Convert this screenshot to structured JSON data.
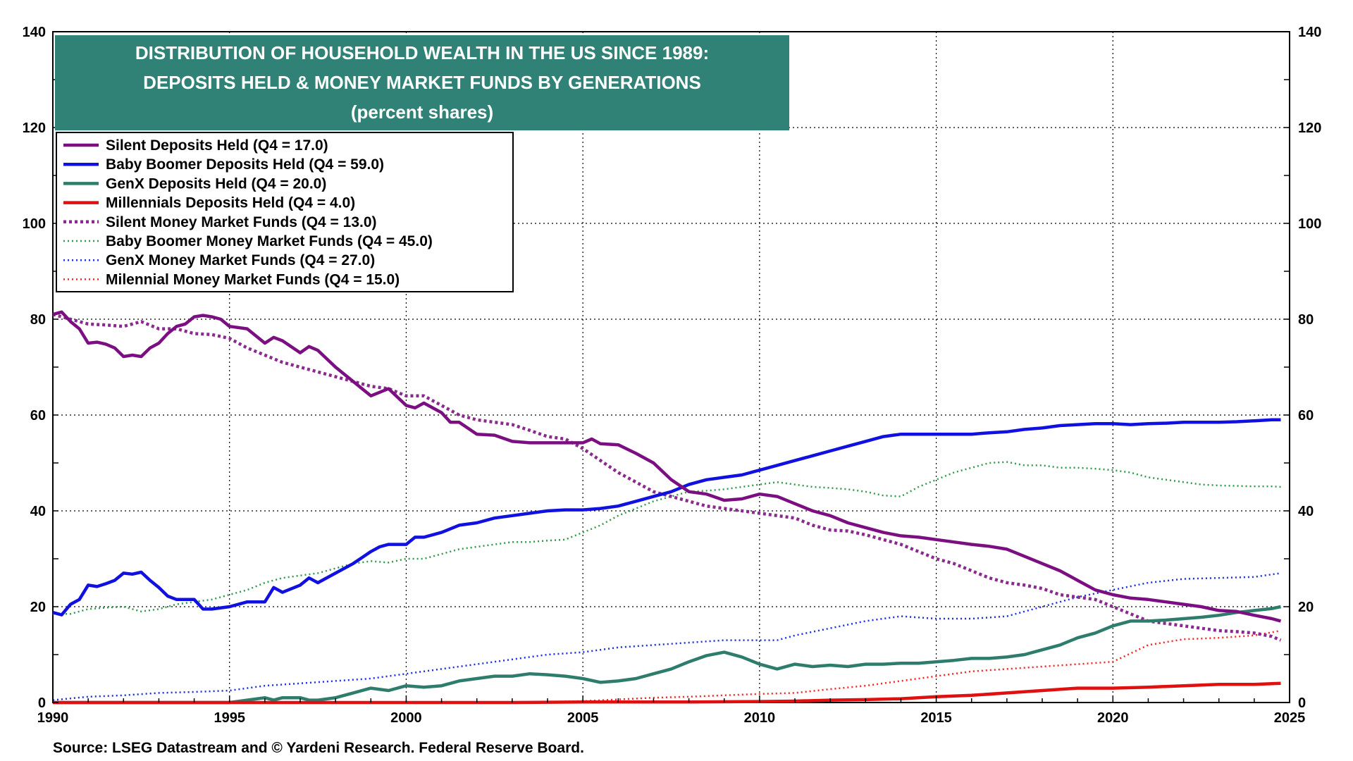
{
  "chart_data": {
    "type": "line",
    "title": [
      "DISTRIBUTION OF HOUSEHOLD WEALTH IN THE US SINCE 1989:",
      "DEPOSITS HELD & MONEY MARKET FUNDS BY GENERATIONS",
      "(percent shares)"
    ],
    "source": "Source: LSEG Datastream and © Yardeni Research. Federal Reserve Board.",
    "xlim": [
      1990,
      2025
    ],
    "ylim": [
      0,
      140
    ],
    "x_ticks": [
      "1990",
      "1995",
      "2000",
      "2005",
      "2010",
      "2015",
      "2020",
      "2025"
    ],
    "y_ticks": [
      "0",
      "20",
      "40",
      "60",
      "80",
      "100",
      "120",
      "140"
    ],
    "grid": true,
    "dual_y_axis": true,
    "legend_position": "top-left",
    "series": [
      {
        "name": "Silent Deposits Held (Q4 = 17.0)",
        "color": "#7b0f82",
        "style": "solid",
        "x": [
          1990.0,
          1990.25,
          1990.5,
          1990.75,
          1991.0,
          1991.25,
          1991.5,
          1991.75,
          1992.0,
          1992.25,
          1992.5,
          1992.75,
          1993.0,
          1993.25,
          1993.5,
          1993.75,
          1994.0,
          1994.25,
          1994.5,
          1994.75,
          1995.0,
          1995.5,
          1996.0,
          1996.25,
          1996.5,
          1997.0,
          1997.25,
          1997.5,
          1998.0,
          1998.5,
          1999.0,
          1999.5,
          2000.0,
          2000.25,
          2000.5,
          2001.0,
          2001.25,
          2001.5,
          2002.0,
          2002.5,
          2003.0,
          2003.5,
          2004.0,
          2004.5,
          2005.0,
          2005.25,
          2005.5,
          2006.0,
          2006.5,
          2007.0,
          2007.5,
          2008.0,
          2008.5,
          2009.0,
          2009.5,
          2010.0,
          2010.5,
          2011.0,
          2011.5,
          2012.0,
          2012.5,
          2013.0,
          2013.5,
          2014.0,
          2014.5,
          2015.0,
          2015.5,
          2016.0,
          2016.5,
          2017.0,
          2017.5,
          2018.0,
          2018.5,
          2019.0,
          2019.5,
          2020.0,
          2020.5,
          2021.0,
          2021.5,
          2022.0,
          2022.5,
          2023.0,
          2023.5,
          2024.0,
          2024.5,
          2024.75
        ],
        "y": [
          81,
          81.5,
          79.5,
          78,
          75,
          75.2,
          74.8,
          74,
          72.2,
          72.5,
          72.2,
          74,
          75,
          77,
          78.5,
          79,
          80.5,
          80.8,
          80.5,
          80,
          78.5,
          78,
          75,
          76.2,
          75.5,
          73,
          74.3,
          73.5,
          70,
          67,
          64,
          65.5,
          62,
          61.5,
          62.5,
          60.5,
          58.5,
          58.5,
          56,
          55.8,
          54.5,
          54.2,
          54.2,
          54.2,
          54.2,
          55,
          54,
          53.8,
          52,
          50,
          46.5,
          44,
          43.5,
          42.2,
          42.5,
          43.5,
          43,
          41.5,
          40,
          39,
          37.5,
          36.5,
          35.5,
          34.8,
          34.5,
          34,
          33.5,
          33,
          32.6,
          32,
          30.5,
          29,
          27.5,
          25.5,
          23.5,
          22.5,
          21.8,
          21.5,
          21,
          20.5,
          20,
          19.2,
          19,
          18.2,
          17.5,
          17.0
        ]
      },
      {
        "name": "Baby Boomer Deposits Held (Q4 = 59.0)",
        "color": "#1010e0",
        "style": "solid",
        "x": [
          1990.0,
          1990.25,
          1990.5,
          1990.75,
          1991.0,
          1991.25,
          1991.5,
          1991.75,
          1992.0,
          1992.25,
          1992.5,
          1992.75,
          1993.0,
          1993.25,
          1993.5,
          1993.75,
          1994.0,
          1994.25,
          1994.5,
          1995.0,
          1995.5,
          1996.0,
          1996.25,
          1996.5,
          1997.0,
          1997.25,
          1997.5,
          1998.0,
          1998.5,
          1999.0,
          1999.25,
          1999.5,
          2000.0,
          2000.25,
          2000.5,
          2001.0,
          2001.5,
          2002.0,
          2002.5,
          2003.0,
          2003.5,
          2004.0,
          2004.5,
          2005.0,
          2005.5,
          2006.0,
          2006.5,
          2007.0,
          2007.5,
          2008.0,
          2008.5,
          2009.0,
          2009.5,
          2010.0,
          2010.5,
          2011.0,
          2011.5,
          2012.0,
          2012.5,
          2013.0,
          2013.5,
          2014.0,
          2014.5,
          2015.0,
          2015.5,
          2016.0,
          2016.5,
          2017.0,
          2017.5,
          2018.0,
          2018.5,
          2019.0,
          2019.5,
          2020.0,
          2020.5,
          2021.0,
          2021.5,
          2022.0,
          2022.5,
          2023.0,
          2023.5,
          2024.0,
          2024.5,
          2024.75
        ],
        "y": [
          18.8,
          18.3,
          20.5,
          21.5,
          24.5,
          24.2,
          24.8,
          25.5,
          27,
          26.8,
          27.2,
          25.5,
          24,
          22.2,
          21.5,
          21.5,
          21.5,
          19.5,
          19.5,
          20,
          21,
          21,
          24,
          23,
          24.5,
          26,
          25,
          27,
          29,
          31.5,
          32.5,
          33,
          33,
          34.5,
          34.5,
          35.5,
          37,
          37.5,
          38.5,
          39,
          39.5,
          40,
          40.2,
          40.2,
          40.5,
          41,
          42,
          43,
          44,
          45.5,
          46.5,
          47,
          47.5,
          48.5,
          49.5,
          50.5,
          51.5,
          52.5,
          53.5,
          54.5,
          55.5,
          56,
          56,
          56,
          56,
          56,
          56.3,
          56.5,
          57,
          57.3,
          57.8,
          58,
          58.2,
          58.2,
          58,
          58.2,
          58.3,
          58.5,
          58.5,
          58.5,
          58.6,
          58.8,
          59,
          59.0
        ]
      },
      {
        "name": "GenX Deposits Held (Q4 = 20.0)",
        "color": "#2e7d6c",
        "style": "solid",
        "x": [
          1990.0,
          1991.0,
          1992.0,
          1993.0,
          1994.0,
          1995.0,
          1995.5,
          1996.0,
          1996.25,
          1996.5,
          1997.0,
          1997.25,
          1997.5,
          1998.0,
          1998.5,
          1999.0,
          1999.5,
          2000.0,
          2000.5,
          2001.0,
          2001.5,
          2002.0,
          2002.5,
          2003.0,
          2003.5,
          2004.0,
          2004.5,
          2005.0,
          2005.5,
          2006.0,
          2006.5,
          2007.0,
          2007.5,
          2008.0,
          2008.5,
          2009.0,
          2009.5,
          2010.0,
          2010.5,
          2011.0,
          2011.5,
          2012.0,
          2012.5,
          2013.0,
          2013.5,
          2014.0,
          2014.5,
          2015.0,
          2015.5,
          2016.0,
          2016.5,
          2017.0,
          2017.5,
          2018.0,
          2018.5,
          2019.0,
          2019.5,
          2020.0,
          2020.5,
          2021.0,
          2021.5,
          2022.0,
          2022.5,
          2023.0,
          2023.5,
          2024.0,
          2024.5,
          2024.75
        ],
        "y": [
          0,
          0,
          0,
          0,
          0,
          0,
          0.5,
          1,
          0.5,
          1,
          1,
          0.5,
          0.5,
          1,
          2,
          3,
          2.5,
          3.5,
          3.2,
          3.5,
          4.5,
          5,
          5.5,
          5.5,
          6,
          5.8,
          5.5,
          5,
          4.2,
          4.5,
          5,
          6,
          7,
          8.5,
          9.8,
          10.5,
          9.5,
          8,
          7,
          8,
          7.5,
          7.8,
          7.5,
          8,
          8,
          8.2,
          8.2,
          8.5,
          8.8,
          9.2,
          9.2,
          9.5,
          10,
          11,
          12,
          13.5,
          14.5,
          16,
          17,
          17,
          17.2,
          17.5,
          17.8,
          18.2,
          18.8,
          19.2,
          19.6,
          20.0
        ]
      },
      {
        "name": "Millennials Deposits Held (Q4 = 4.0)",
        "color": "#e01010",
        "style": "solid",
        "x": [
          1990.0,
          2003.0,
          2005.0,
          2008.0,
          2010.0,
          2011.0,
          2012.0,
          2013.0,
          2014.0,
          2015.0,
          2016.0,
          2017.0,
          2018.0,
          2019.0,
          2020.0,
          2021.0,
          2022.0,
          2023.0,
          2024.0,
          2024.75
        ],
        "y": [
          0,
          0,
          0.1,
          0.1,
          0.2,
          0.3,
          0.5,
          0.6,
          0.8,
          1.2,
          1.5,
          2,
          2.5,
          3,
          3,
          3.2,
          3.5,
          3.8,
          3.8,
          4.0
        ]
      },
      {
        "name": "Silent Money Market Funds (Q4 = 13.0)",
        "color": "#8b2a8e",
        "style": "dashed",
        "x": [
          1990.0,
          1990.5,
          1991.0,
          1991.5,
          1992.0,
          1992.5,
          1993.0,
          1993.5,
          1994.0,
          1994.5,
          1995.0,
          1995.5,
          1996.0,
          1996.5,
          1997.0,
          1997.5,
          1998.0,
          1998.5,
          1999.0,
          1999.5,
          2000.0,
          2000.5,
          2001.0,
          2001.5,
          2002.0,
          2002.5,
          2003.0,
          2003.5,
          2004.0,
          2004.5,
          2005.0,
          2005.5,
          2006.0,
          2006.5,
          2007.0,
          2007.5,
          2008.0,
          2008.5,
          2009.0,
          2009.5,
          2010.0,
          2010.5,
          2011.0,
          2011.5,
          2012.0,
          2012.5,
          2013.0,
          2013.5,
          2014.0,
          2014.5,
          2015.0,
          2015.5,
          2016.0,
          2016.5,
          2017.0,
          2017.5,
          2018.0,
          2018.5,
          2019.0,
          2019.5,
          2020.0,
          2020.5,
          2021.0,
          2021.5,
          2022.0,
          2022.5,
          2023.0,
          2023.5,
          2024.0,
          2024.5,
          2024.75
        ],
        "y": [
          81,
          80,
          79,
          78.8,
          78.5,
          79.5,
          78,
          78,
          77,
          76.8,
          76,
          74,
          72.5,
          71,
          70,
          69,
          68,
          67,
          66,
          65.5,
          64,
          64,
          62,
          60,
          59,
          58.5,
          58,
          56.8,
          55.5,
          55,
          53,
          50.5,
          48,
          46,
          44,
          43,
          42,
          41,
          40.5,
          40,
          39.5,
          39,
          38.5,
          37,
          36,
          35.8,
          35,
          34,
          33,
          31.5,
          30,
          29,
          27.5,
          26,
          25,
          24.5,
          23.8,
          22.5,
          22,
          21.5,
          20,
          18.5,
          17,
          16.5,
          16,
          15.5,
          15,
          14.8,
          14.5,
          13.8,
          13.0
        ]
      },
      {
        "name": "Baby Boomer Money Market Funds (Q4 = 45.0)",
        "color": "#2f9a4a",
        "style": "dotted",
        "x": [
          1990.0,
          1990.5,
          1991.0,
          1991.5,
          1992.0,
          1992.5,
          1993.0,
          1993.5,
          1994.0,
          1994.5,
          1995.0,
          1995.5,
          1996.0,
          1996.5,
          1997.0,
          1997.5,
          1998.0,
          1998.5,
          1999.0,
          1999.5,
          2000.0,
          2000.5,
          2001.0,
          2001.5,
          2002.0,
          2002.5,
          2003.0,
          2003.5,
          2004.0,
          2004.5,
          2005.0,
          2005.5,
          2006.0,
          2006.5,
          2007.0,
          2007.5,
          2008.0,
          2008.5,
          2009.0,
          2009.5,
          2010.0,
          2010.5,
          2011.0,
          2011.5,
          2012.0,
          2012.5,
          2013.0,
          2013.5,
          2014.0,
          2014.5,
          2015.0,
          2015.5,
          2016.0,
          2016.5,
          2017.0,
          2017.5,
          2018.0,
          2018.5,
          2019.0,
          2019.5,
          2020.0,
          2020.5,
          2021.0,
          2021.5,
          2022.0,
          2022.5,
          2023.0,
          2023.5,
          2024.0,
          2024.5,
          2024.75
        ],
        "y": [
          18.5,
          18.5,
          19.5,
          19.8,
          20,
          19,
          19.5,
          20.5,
          21,
          21.5,
          22.5,
          23.5,
          25,
          26,
          26.5,
          27,
          28,
          29,
          29.5,
          29.2,
          30,
          30,
          31,
          32,
          32.5,
          33,
          33.5,
          33.5,
          33.8,
          34,
          35.5,
          37,
          39,
          40.5,
          42,
          43,
          44,
          44.2,
          44.5,
          45,
          45.5,
          46,
          45.5,
          45,
          44.8,
          44.5,
          44,
          43.2,
          43,
          45,
          46.5,
          48,
          49,
          50,
          50.2,
          49.5,
          49.5,
          49,
          49,
          48.8,
          48.5,
          48,
          47,
          46.5,
          46,
          45.5,
          45.3,
          45.2,
          45.1,
          45.1,
          45.0
        ]
      },
      {
        "name": "GenX Money Market Funds (Q4 = 27.0)",
        "color": "#1a2ee8",
        "style": "dotted",
        "x": [
          1990.0,
          1991.0,
          1992.0,
          1993.0,
          1994.0,
          1995.0,
          1996.0,
          1997.0,
          1998.0,
          1999.0,
          2000.0,
          2001.0,
          2002.0,
          2003.0,
          2004.0,
          2005.0,
          2006.0,
          2007.0,
          2008.0,
          2009.0,
          2010.0,
          2010.5,
          2011.0,
          2012.0,
          2013.0,
          2014.0,
          2015.0,
          2016.0,
          2017.0,
          2018.0,
          2019.0,
          2020.0,
          2021.0,
          2022.0,
          2023.0,
          2024.0,
          2024.75
        ],
        "y": [
          0.5,
          1.2,
          1.5,
          2,
          2.2,
          2.5,
          3.5,
          4,
          4.5,
          5,
          6,
          7,
          8,
          9,
          10,
          10.5,
          11.5,
          12,
          12.5,
          13,
          13,
          13,
          14,
          15.5,
          17,
          18,
          17.5,
          17.5,
          18,
          20,
          22,
          23.5,
          25,
          25.8,
          26,
          26.2,
          27.0
        ]
      },
      {
        "name": "Milennial Money Market Funds (Q4 = 15.0)",
        "color": "#ff2020",
        "style": "dotted",
        "x": [
          1990.0,
          2003.0,
          2005.0,
          2007.0,
          2008.0,
          2009.0,
          2010.0,
          2011.0,
          2012.0,
          2013.0,
          2014.0,
          2015.0,
          2016.0,
          2017.0,
          2018.0,
          2019.0,
          2020.0,
          2021.0,
          2022.0,
          2023.0,
          2024.0,
          2024.75
        ],
        "y": [
          0,
          0,
          0.3,
          1,
          1.2,
          1.5,
          1.8,
          2,
          2.8,
          3.5,
          4.5,
          5.5,
          6.5,
          7,
          7.5,
          8,
          8.5,
          12,
          13.2,
          13.5,
          14,
          15.0
        ]
      }
    ]
  }
}
